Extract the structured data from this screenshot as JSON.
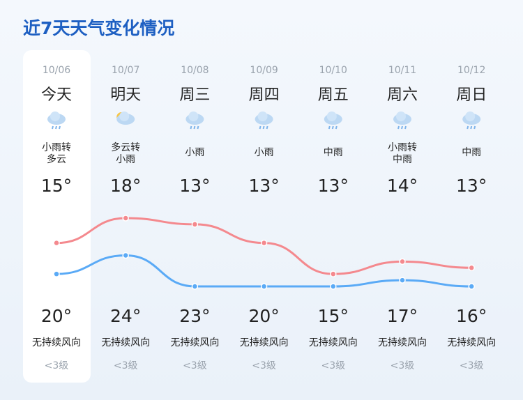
{
  "chart_data": {
    "type": "line",
    "title": "近7天天气变化情况",
    "categories": [
      "10/06",
      "10/07",
      "10/08",
      "10/09",
      "10/10",
      "10/11",
      "10/12"
    ],
    "days": [
      "今天",
      "明天",
      "周三",
      "周四",
      "周五",
      "周六",
      "周日"
    ],
    "weather": [
      "小雨转\n多云",
      "多云转\n小雨",
      "小雨",
      "小雨",
      "中雨",
      "小雨转\n中雨",
      "中雨"
    ],
    "series": [
      {
        "color": "#f4898e",
        "values": [
          20,
          24,
          23,
          20,
          15,
          17,
          16
        ],
        "value_labels": [
          "20°",
          "24°",
          "23°",
          "20°",
          "15°",
          "17°",
          "16°"
        ]
      },
      {
        "color": "#5aaaf6",
        "values": [
          15,
          18,
          13,
          13,
          13,
          14,
          13
        ],
        "value_labels": [
          "15°",
          "18°",
          "13°",
          "13°",
          "13°",
          "14°",
          "13°"
        ]
      }
    ],
    "wind": [
      "无持续风向",
      "无持续风向",
      "无持续风向",
      "无持续风向",
      "无持续风向",
      "无持续风向",
      "无持续风向"
    ],
    "wind_level": [
      "<3级",
      "<3级",
      "<3级",
      "<3级",
      "<3级",
      "<3级",
      "<3级"
    ]
  }
}
